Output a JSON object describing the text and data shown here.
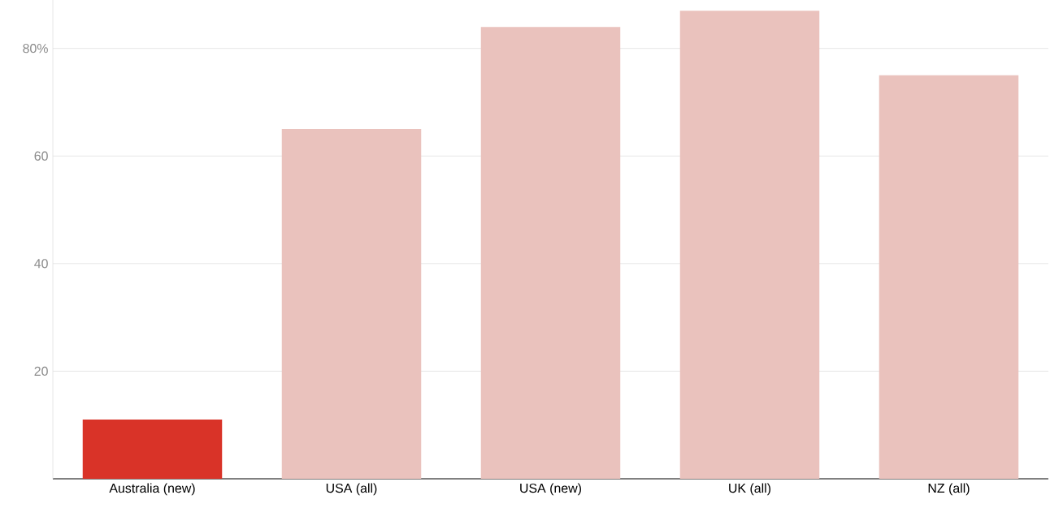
{
  "chart_data": {
    "type": "bar",
    "categories": [
      "Australia (new)",
      "USA (all)",
      "USA (new)",
      "UK (all)",
      "NZ (all)"
    ],
    "values": [
      11,
      65,
      84,
      87,
      75
    ],
    "colors": [
      "#d93328",
      "#eac2bd",
      "#eac2bd",
      "#eac2bd",
      "#eac2bd"
    ],
    "ylim": [
      0,
      89
    ],
    "yticks": [
      20,
      40,
      60,
      {
        "value": 80,
        "label": "80%"
      }
    ],
    "grid": "y"
  }
}
